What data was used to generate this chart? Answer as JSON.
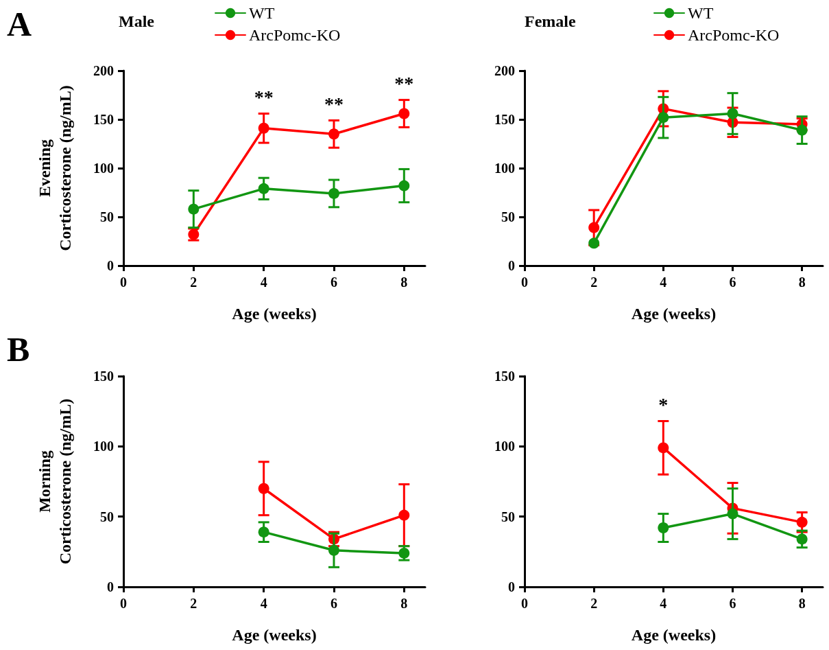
{
  "chart_data": [
    {
      "type": "line",
      "title": "Male",
      "ylabel": "Evening\nCorticosterone (ng/mL)",
      "xlabel": "Age (weeks)",
      "xlim": [
        0,
        8.6
      ],
      "xticks": [
        0,
        2,
        4,
        6,
        8
      ],
      "ylim": [
        0,
        200
      ],
      "yticks": [
        0,
        50,
        100,
        150,
        200
      ],
      "legend": "top",
      "marker": "circle",
      "line_style": "solid",
      "grid": false,
      "x": [
        2,
        4,
        6,
        8
      ],
      "series": [
        {
          "name": "WT",
          "color": "#129612",
          "values": [
            58,
            79,
            74,
            82
          ],
          "errors": [
            19,
            11,
            14,
            17
          ]
        },
        {
          "name": "ArcPomc-KO",
          "color": "#ff0000",
          "values": [
            32,
            141,
            135,
            156
          ],
          "errors": [
            6,
            15,
            14,
            14
          ]
        }
      ],
      "annotations": [
        "A",
        {
          "text": "**",
          "x": 4,
          "y": 141
        },
        {
          "text": "**",
          "x": 6,
          "y": 135
        },
        {
          "text": "**",
          "x": 8,
          "y": 156
        }
      ]
    },
    {
      "type": "line",
      "title": "Female",
      "xlabel": "Age (weeks)",
      "xlim": [
        0,
        8.6
      ],
      "xticks": [
        0,
        2,
        4,
        6,
        8
      ],
      "ylim": [
        0,
        200
      ],
      "yticks": [
        0,
        50,
        100,
        150,
        200
      ],
      "legend": "top",
      "marker": "circle",
      "line_style": "solid",
      "grid": false,
      "x": [
        2,
        4,
        6,
        8
      ],
      "series": [
        {
          "name": "WT",
          "color": "#129612",
          "values": [
            23,
            152,
            156,
            139
          ],
          "errors": [
            null,
            21,
            21,
            14
          ]
        },
        {
          "name": "ArcPomc-KO",
          "color": "#ff0000",
          "values": [
            39,
            161,
            147,
            145
          ],
          "errors": [
            18,
            18,
            15,
            6
          ]
        }
      ]
    },
    {
      "type": "line",
      "ylabel": "Morning\nCorticosterone (ng/mL)",
      "xlabel": "Age (weeks)",
      "xlim": [
        0,
        8.6
      ],
      "xticks": [
        0,
        2,
        4,
        6,
        8
      ],
      "ylim": [
        0,
        150
      ],
      "yticks": [
        0,
        50,
        100,
        150
      ],
      "marker": "circle",
      "line_style": "solid",
      "grid": false,
      "x": [
        4,
        6,
        8
      ],
      "series": [
        {
          "color": "#129612",
          "values": [
            39,
            26,
            24
          ],
          "errors": [
            7,
            12,
            5
          ]
        },
        {
          "color": "#ff0000",
          "values": [
            70,
            34,
            51
          ],
          "errors": [
            19,
            5,
            22
          ]
        }
      ],
      "annotations": [
        "B"
      ]
    },
    {
      "type": "line",
      "xlabel": "Age (weeks)",
      "xlim": [
        0,
        8.6
      ],
      "xticks": [
        0,
        2,
        4,
        6,
        8
      ],
      "ylim": [
        0,
        150
      ],
      "yticks": [
        0,
        50,
        100,
        150
      ],
      "marker": "circle",
      "line_style": "solid",
      "grid": false,
      "x": [
        4,
        6,
        8
      ],
      "series": [
        {
          "color": "#129612",
          "values": [
            42,
            52,
            34
          ],
          "errors": [
            10,
            18,
            6
          ]
        },
        {
          "color": "#ff0000",
          "values": [
            99,
            56,
            46
          ],
          "errors": [
            19,
            18,
            7
          ]
        }
      ],
      "annotations": [
        {
          "text": "*",
          "x": 4,
          "y": 99
        }
      ]
    }
  ]
}
